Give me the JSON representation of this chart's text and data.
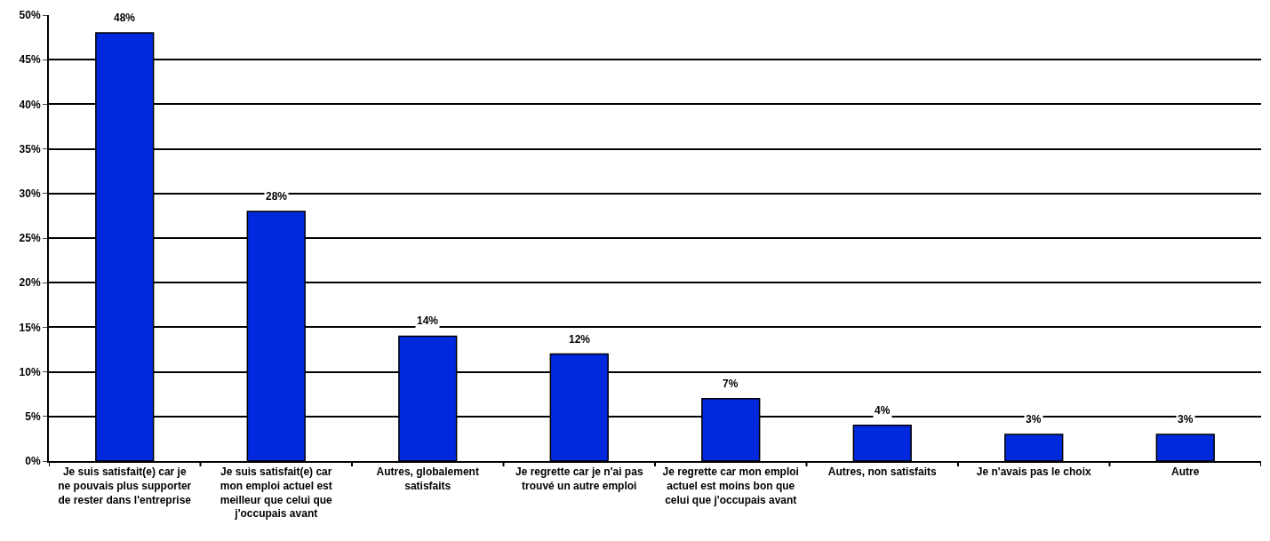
{
  "chart_data": {
    "type": "bar",
    "categories": [
      "Je suis satisfait(e) car je ne pouvais plus supporter de rester dans l'entreprise",
      "Je suis satisfait(e) car mon emploi actuel est meilleur que celui que j'occupais avant",
      "Autres, globalement satisfaits",
      "Je regrette car je n'ai pas trouvé un autre emploi",
      "Je regrette car mon emploi actuel est moins bon que celui que j'occupais avant",
      "Autres, non satisfaits",
      "Je n'avais pas le choix",
      "Autre"
    ],
    "values": [
      48,
      28,
      14,
      12,
      7,
      4,
      3,
      3
    ],
    "value_labels": [
      "48%",
      "28%",
      "14%",
      "12%",
      "7%",
      "4%",
      "3%",
      "3%"
    ],
    "color": "#0029dd",
    "ylim": [
      0,
      50
    ],
    "yticks": [
      {
        "value": 0,
        "label": "0%"
      },
      {
        "value": 5,
        "label": "5%"
      },
      {
        "value": 10,
        "label": "10%"
      },
      {
        "value": 15,
        "label": "15%"
      },
      {
        "value": 20,
        "label": "20%"
      },
      {
        "value": 25,
        "label": "25%"
      },
      {
        "value": 30,
        "label": "30%"
      },
      {
        "value": 35,
        "label": "35%"
      },
      {
        "value": 40,
        "label": "40%"
      },
      {
        "value": 45,
        "label": "45%"
      },
      {
        "value": 50,
        "label": "50%"
      }
    ],
    "grid": "y"
  }
}
